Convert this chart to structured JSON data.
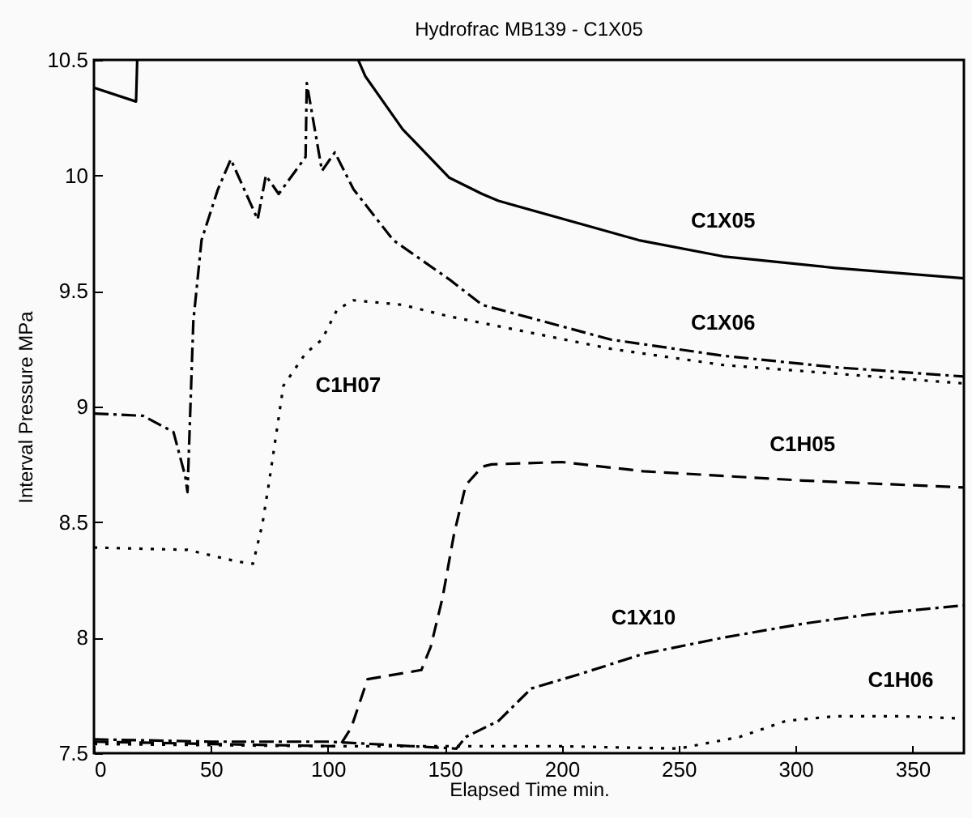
{
  "chart_data": {
    "type": "line",
    "title": "Hydrofrac MB139 - C1X05",
    "xlabel": "Elapsed Time  min.",
    "ylabel": "Interval Pressure MPa",
    "xlim": [
      0,
      372
    ],
    "ylim": [
      7.5,
      10.5
    ],
    "xticks": [
      0,
      50,
      100,
      150,
      200,
      250,
      300,
      350
    ],
    "yticks": [
      7.5,
      8,
      8.5,
      9,
      9.5,
      10,
      10.5
    ],
    "grid": false,
    "marker": "none",
    "series": [
      {
        "name": "C1X05",
        "color": "#000000",
        "line_style": "solid",
        "x": [
          0,
          18,
          18.5,
          60,
          113,
          116,
          132,
          152,
          166,
          173,
          233,
          269,
          317,
          372
        ],
        "values": [
          10.38,
          10.32,
          10.5,
          null,
          10.5,
          10.43,
          10.2,
          9.99,
          9.92,
          9.89,
          9.72,
          9.65,
          9.6,
          9.555
        ]
      },
      {
        "name": "C1X06",
        "color": "#000000",
        "line_style": "dashdot",
        "x": [
          0,
          21,
          34,
          39,
          40,
          42.5,
          46,
          53,
          58.5,
          70,
          73.5,
          79,
          90.5,
          91,
          97.5,
          103,
          111,
          128,
          152,
          166,
          221,
          269,
          317,
          372
        ],
        "values": [
          8.97,
          8.96,
          8.89,
          8.7,
          8.63,
          9.37,
          9.72,
          9.94,
          10.07,
          9.81,
          10.0,
          9.92,
          10.08,
          10.4,
          10.02,
          10.1,
          9.94,
          9.72,
          9.55,
          9.44,
          9.29,
          9.22,
          9.17,
          9.13
        ]
      },
      {
        "name": "C1H07",
        "color": "#000000",
        "line_style": "dotted",
        "x": [
          0,
          40,
          61,
          68,
          72,
          75,
          81,
          90.5,
          97.5,
          104,
          111,
          132,
          152,
          221,
          269,
          372
        ],
        "values": [
          8.39,
          8.38,
          8.33,
          8.32,
          8.49,
          8.68,
          9.09,
          9.23,
          9.29,
          9.42,
          9.46,
          9.44,
          9.39,
          9.25,
          9.18,
          9.1
        ]
      },
      {
        "name": "C1H05",
        "color": "#000000",
        "line_style": "dashed",
        "x": [
          0,
          50,
          105,
          110,
          117,
          140,
          144,
          149,
          154,
          159,
          166,
          170,
          200,
          235,
          303,
          372
        ],
        "values": [
          7.55,
          7.54,
          7.53,
          7.61,
          7.82,
          7.86,
          7.96,
          8.17,
          8.45,
          8.66,
          8.74,
          8.75,
          8.76,
          8.72,
          8.68,
          8.65
        ]
      },
      {
        "name": "C1X10",
        "color": "#000000",
        "line_style": "dashdot",
        "x": [
          0,
          50,
          100,
          155,
          159,
          173,
          187,
          207,
          235,
          269,
          303,
          331,
          372
        ],
        "values": [
          7.56,
          7.55,
          7.55,
          7.52,
          7.57,
          7.64,
          7.78,
          7.84,
          7.93,
          8.0,
          8.06,
          8.1,
          8.14
        ]
      },
      {
        "name": "C1H06",
        "color": "#000000",
        "line_style": "dotted",
        "x": [
          0,
          100,
          200,
          250,
          276,
          296,
          317,
          345,
          372
        ],
        "values": [
          7.54,
          7.53,
          7.53,
          7.52,
          7.57,
          7.64,
          7.66,
          7.66,
          7.65
        ]
      }
    ]
  }
}
